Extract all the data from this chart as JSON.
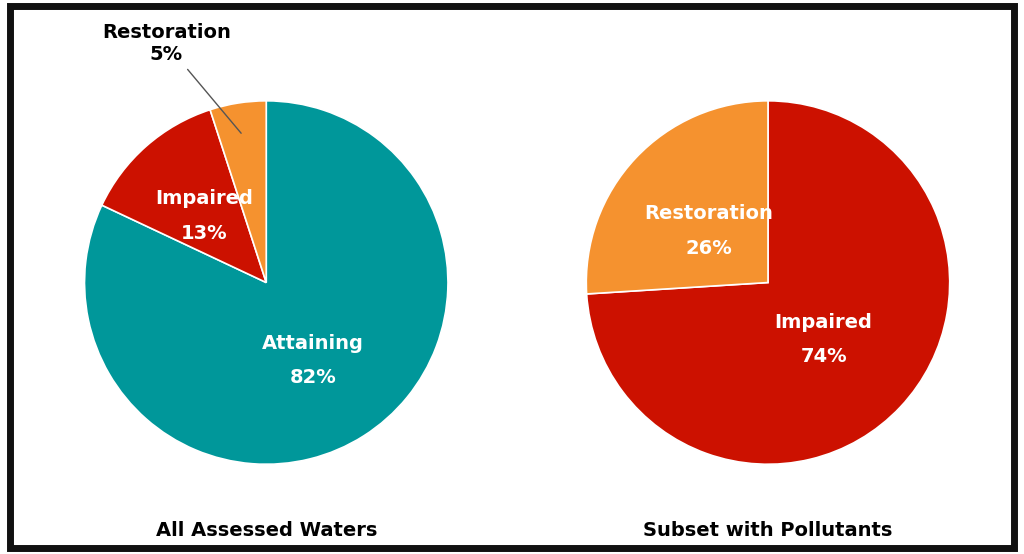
{
  "chart1": {
    "title": "All Assessed Waters",
    "values": [
      82,
      13,
      5
    ],
    "colors": [
      "#00979A",
      "#CC1100",
      "#F5922F"
    ],
    "startangle": 90
  },
  "chart2": {
    "title": "Subset with Pollutants",
    "values": [
      74,
      26
    ],
    "colors": [
      "#CC1100",
      "#F5922F"
    ],
    "startangle": 90
  },
  "background_color": "#FFFFFF",
  "border_color": "#111111",
  "label_fontsize": 14,
  "pct_fontsize": 14,
  "title_fontsize": 14
}
